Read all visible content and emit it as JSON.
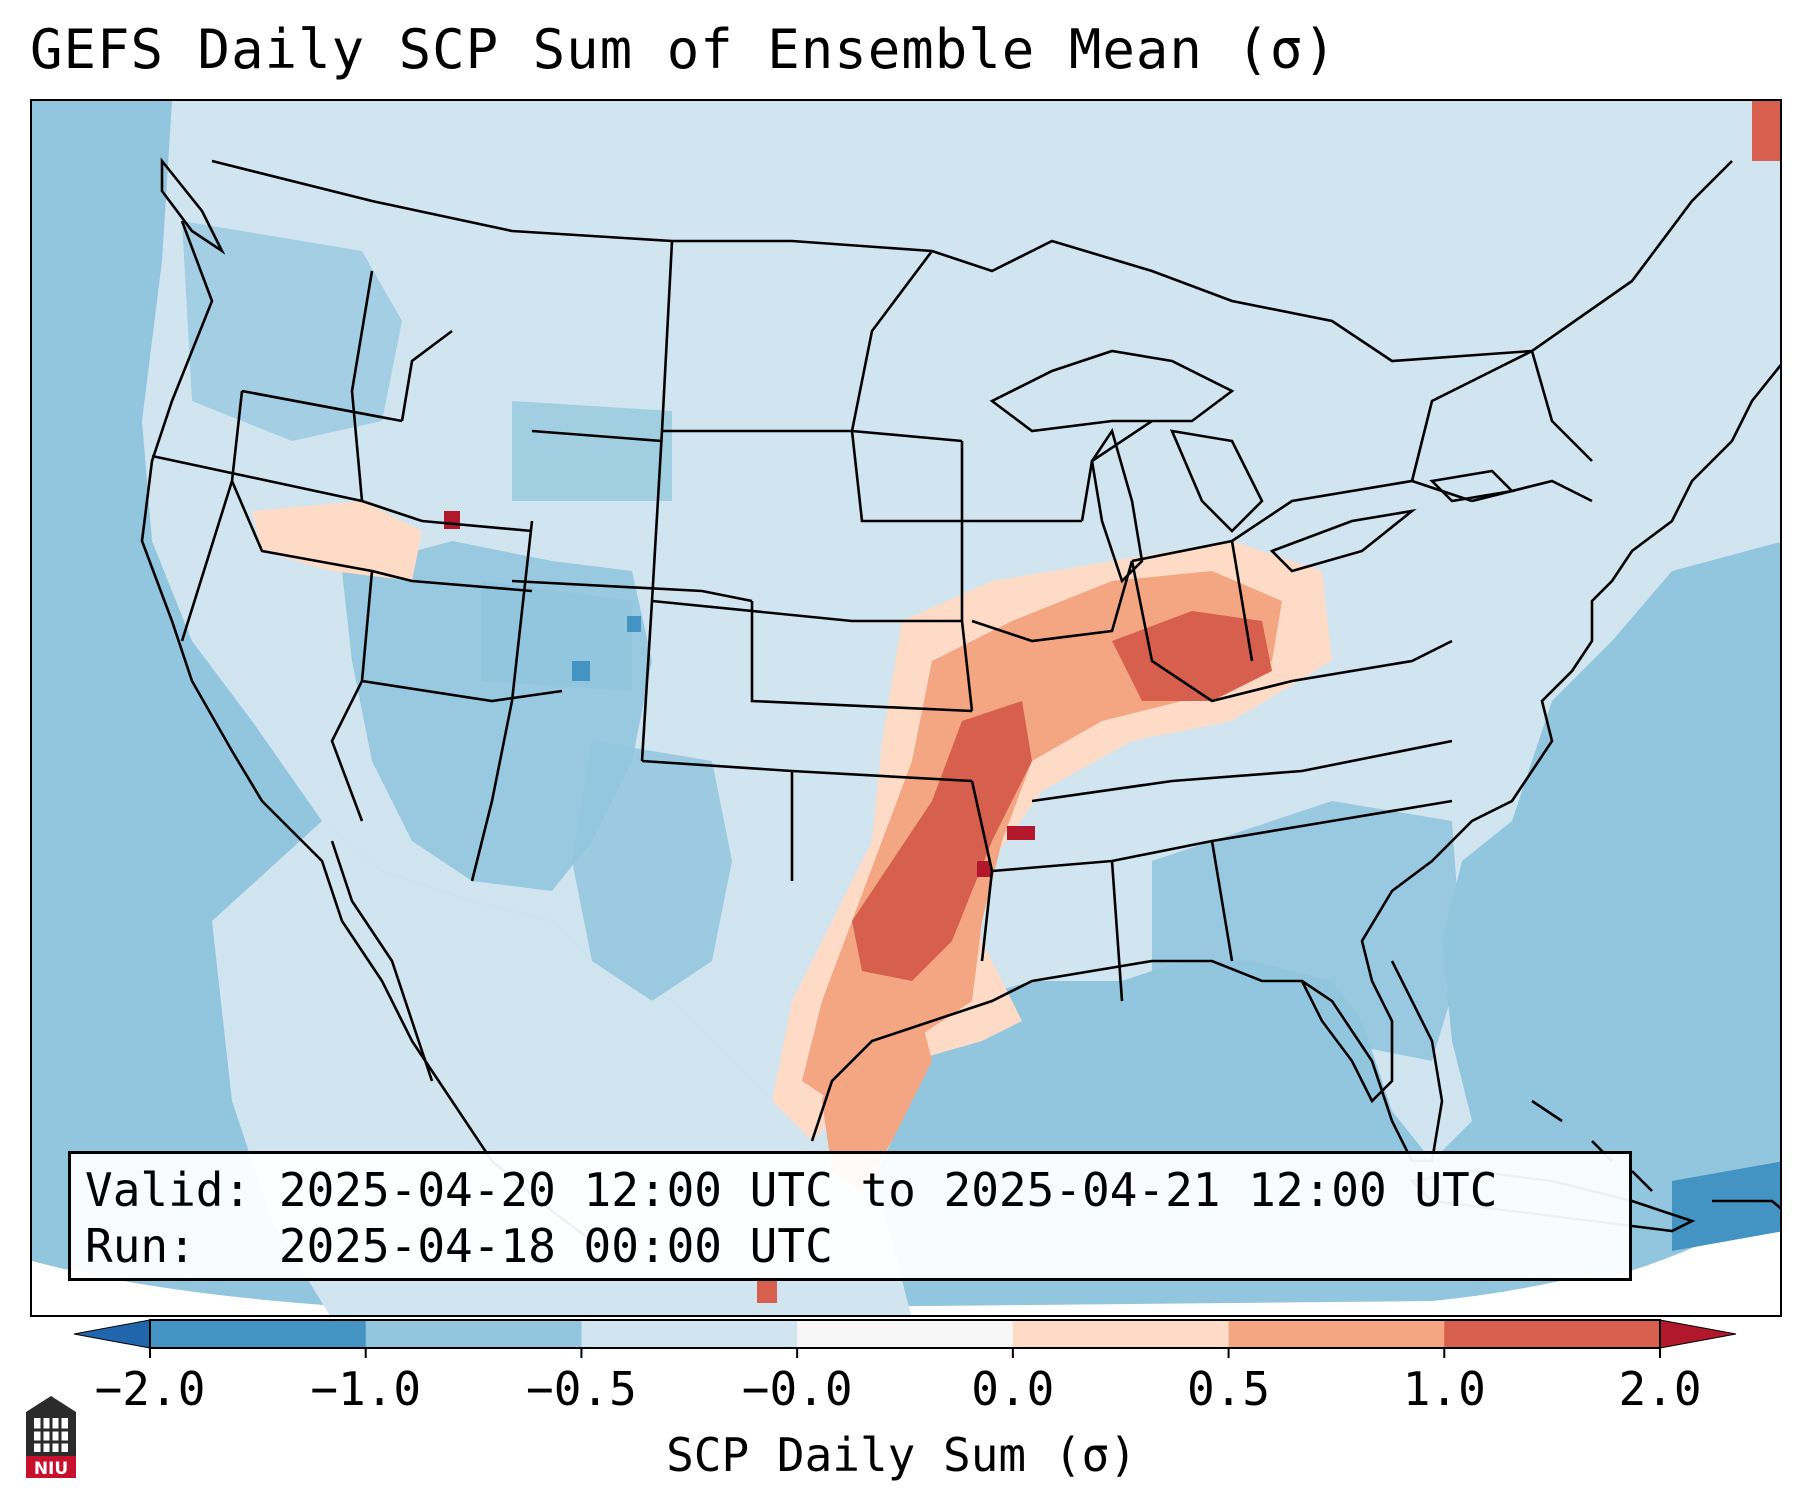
{
  "title": "GEFS Daily SCP Sum of Ensemble Mean (σ)",
  "info": {
    "valid_label": "Valid:",
    "valid_value": "2025-04-20 12:00 UTC to 2025-04-21 12:00 UTC",
    "run_label": "Run:",
    "run_value": "2025-04-18 00:00 UTC"
  },
  "colorbar": {
    "label": "SCP Daily Sum (σ)",
    "ticks": [
      "−2.0",
      "−1.0",
      "−0.5",
      "−0.0",
      "0.0",
      "0.5",
      "1.0",
      "2.0"
    ],
    "bin_colors": [
      "#4393c3",
      "#92c5de",
      "#d1e5f0",
      "#f7f7f7",
      "#fddbc7",
      "#f4a582",
      "#d6604d"
    ],
    "under_color": "#2166ac",
    "over_color": "#b2182b"
  },
  "map": {
    "land_base_color": "#d1e5f0",
    "ocean_color": "#92c5de",
    "outline_color": "#000000"
  },
  "logo": {
    "text": "NIU"
  }
}
